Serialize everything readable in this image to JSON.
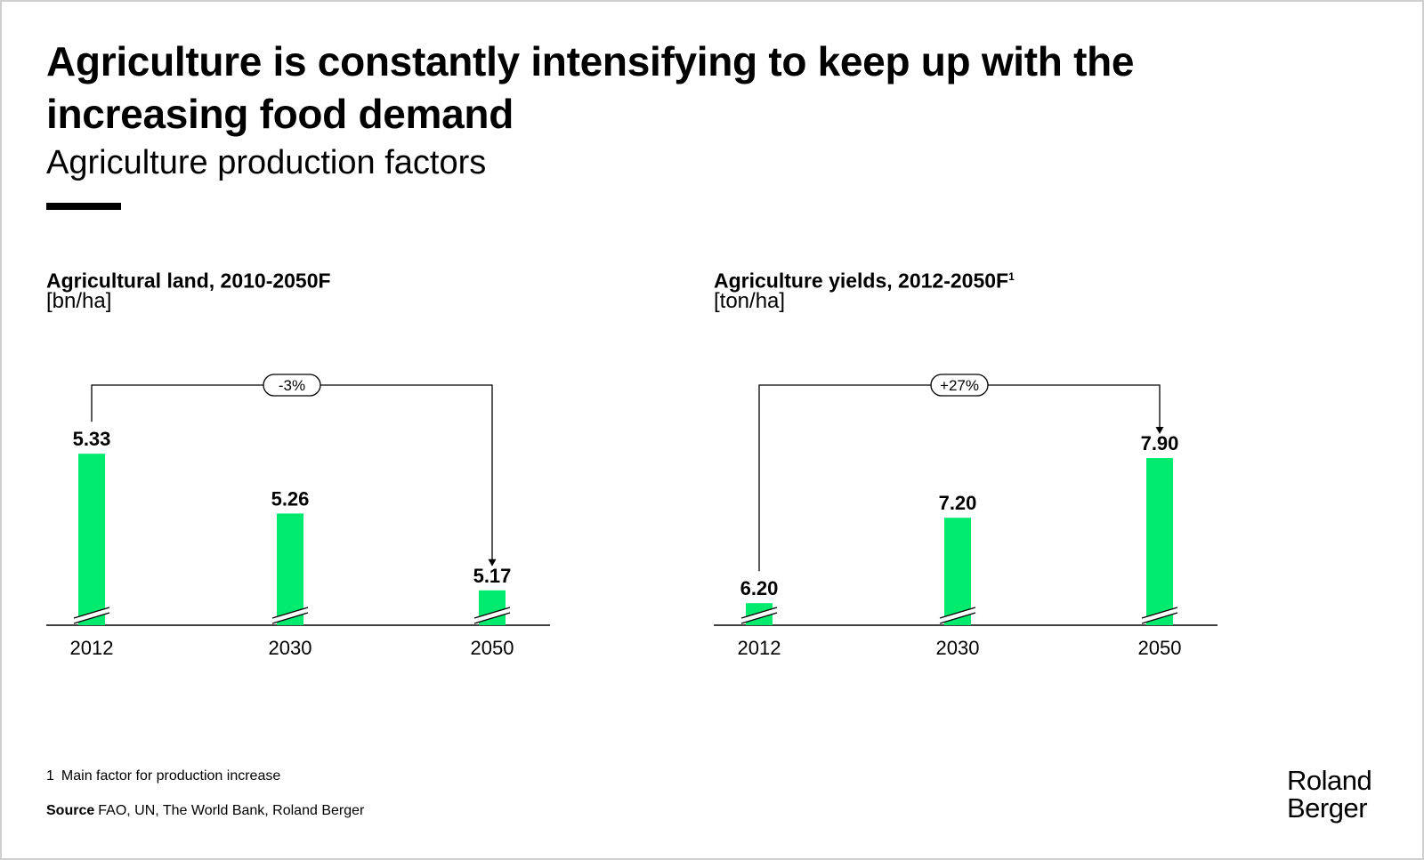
{
  "header": {
    "title": "Agriculture is constantly intensifying to keep up with the increasing food demand",
    "subtitle": "Agriculture production factors"
  },
  "colors": {
    "bar": "#00EA6E",
    "text": "#000000",
    "background": "#FFFFFF"
  },
  "chart_data": [
    {
      "type": "bar",
      "title": "Agricultural land, 2010-2050F",
      "title_footnote_marker": "",
      "unit": "[bn/ha]",
      "categories": [
        "2012",
        "2030",
        "2050"
      ],
      "values": [
        5.33,
        5.26,
        5.17
      ],
      "value_labels": [
        "5.33",
        "5.26",
        "5.17"
      ],
      "axis_break": true,
      "ylim": [
        5.15,
        5.35
      ],
      "change_label": "-3%",
      "change_from": "2012",
      "change_to": "2050",
      "grid": false,
      "legend": "none"
    },
    {
      "type": "bar",
      "title": "Agriculture yields, 2012-2050F",
      "title_footnote_marker": "1",
      "unit": "[ton/ha]",
      "categories": [
        "2012",
        "2030",
        "2050"
      ],
      "values": [
        6.2,
        7.2,
        7.9
      ],
      "value_labels": [
        "6.20",
        "7.20",
        "7.90"
      ],
      "axis_break": true,
      "ylim": [
        6.15,
        8.15
      ],
      "change_label": "+27%",
      "change_from": "2012",
      "change_to": "2050",
      "grid": false,
      "legend": "none"
    }
  ],
  "footnote": {
    "number": "1",
    "text": "Main factor for production increase"
  },
  "source": {
    "label": "Source",
    "text": "FAO, UN, The World Bank, Roland Berger"
  },
  "logo": {
    "line1": "Roland",
    "line2": "Berger"
  }
}
